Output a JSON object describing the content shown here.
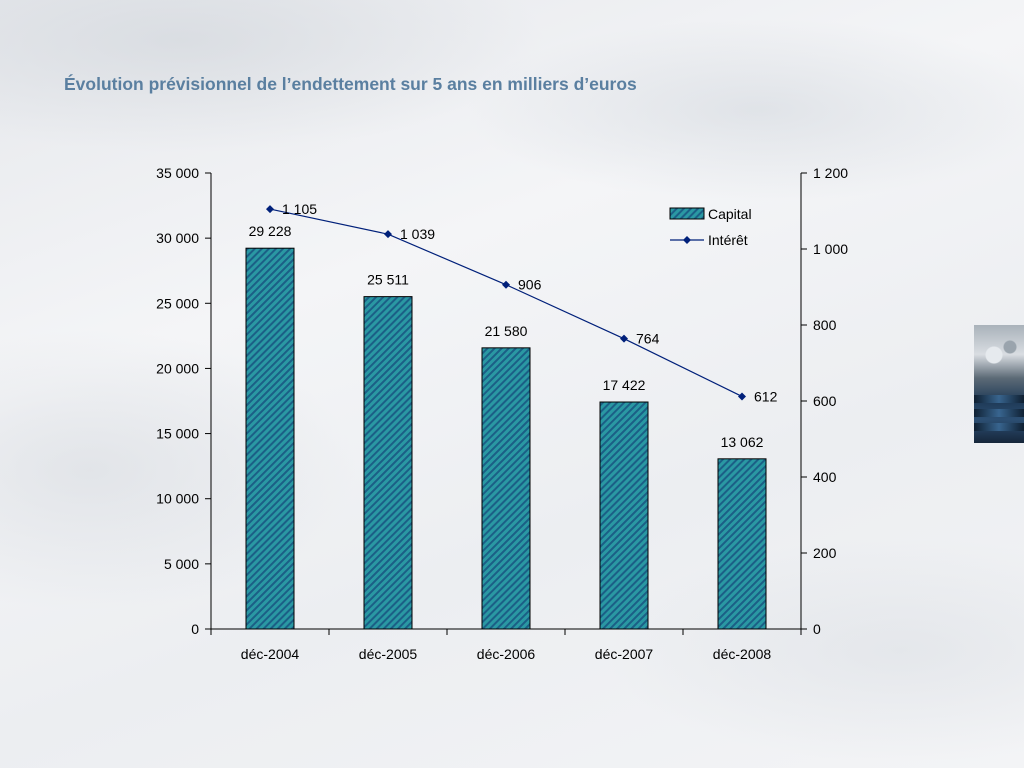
{
  "slide": {
    "title": "Évolution prévisionnel de l’endettement sur 5 ans en milliers d’euros"
  },
  "chart_data": {
    "type": "bar",
    "categories": [
      "déc-2004",
      "déc-2005",
      "déc-2006",
      "déc-2007",
      "déc-2008"
    ],
    "series": [
      {
        "name": "Capital",
        "type": "bar",
        "axis": "left",
        "values": [
          29228,
          25511,
          21580,
          17422,
          13062
        ],
        "labels": [
          "29 228",
          "25 511",
          "21 580",
          "17 422",
          "13 062"
        ],
        "color": "#1f8a96"
      },
      {
        "name": "Intérêt",
        "type": "line",
        "axis": "right",
        "values": [
          1105,
          1039,
          906,
          764,
          612
        ],
        "labels": [
          "1 105",
          "1 039",
          "906",
          "764",
          "612"
        ],
        "color": "#00207a"
      }
    ],
    "y_left": {
      "ylim": [
        0,
        35000
      ],
      "ticks": [
        0,
        5000,
        10000,
        15000,
        20000,
        25000,
        30000,
        35000
      ],
      "tick_labels": [
        "0",
        "5 000",
        "10 000",
        "15 000",
        "20 000",
        "25 000",
        "30 000",
        "35 000"
      ]
    },
    "y_right": {
      "ylim": [
        0,
        1200
      ],
      "ticks": [
        0,
        200,
        400,
        600,
        800,
        1000,
        1200
      ],
      "tick_labels": [
        "0",
        "200",
        "400",
        "600",
        "800",
        "1 000",
        "1 200"
      ]
    },
    "legend_position": "top-right",
    "grid": false
  }
}
